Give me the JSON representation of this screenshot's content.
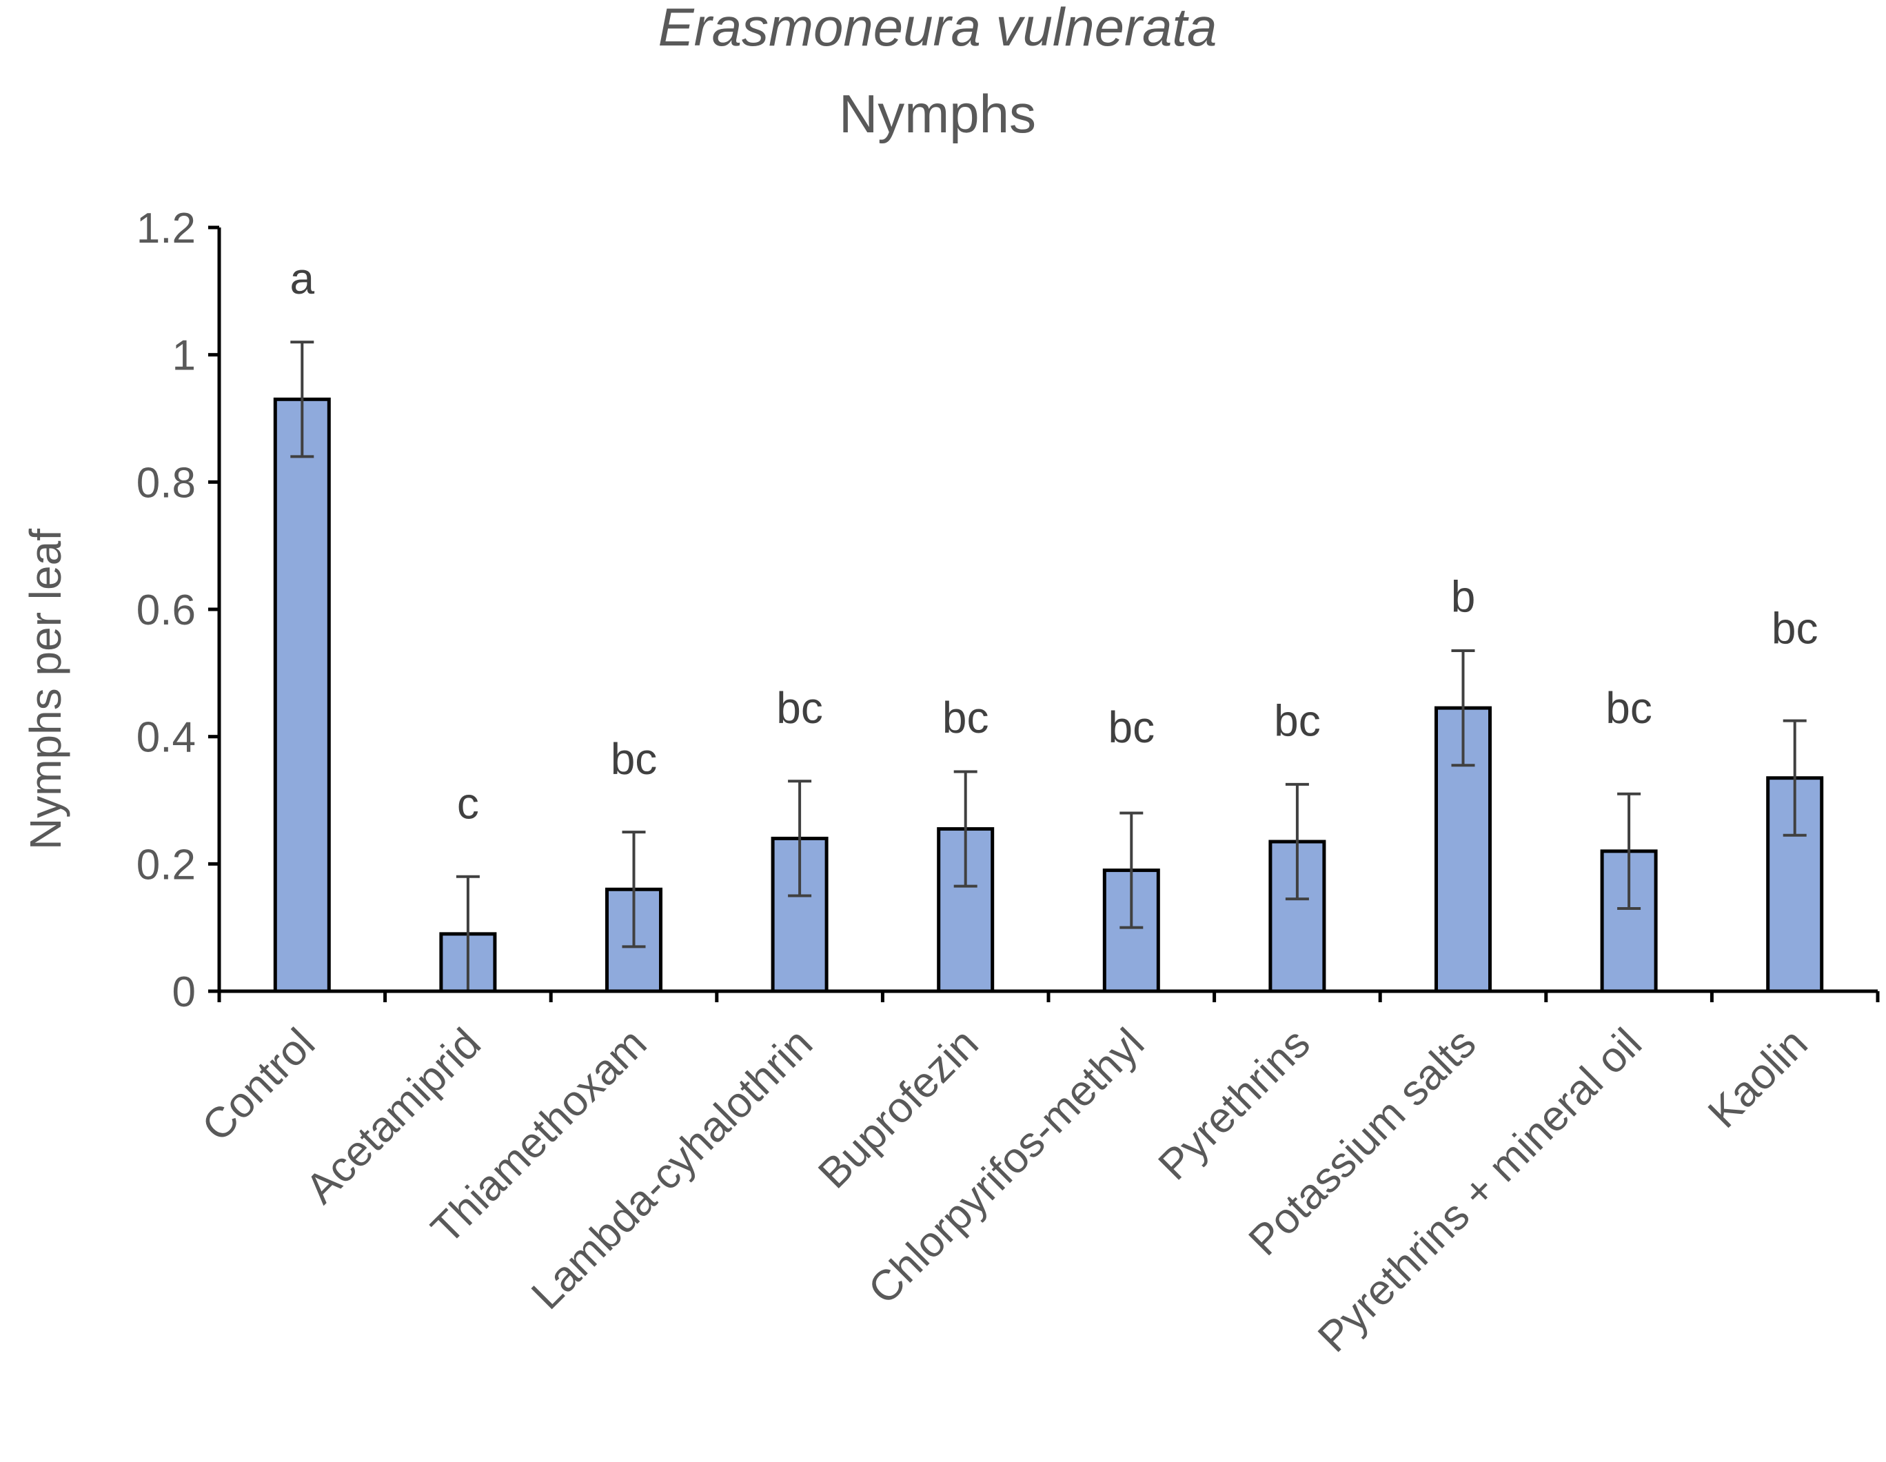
{
  "chart_data": {
    "type": "bar",
    "title": "Erasmoneura vulnerata",
    "subtitle": "Nymphs",
    "xlabel": "",
    "ylabel": "Nymphs per leaf",
    "ylim": [
      0,
      1.2
    ],
    "yticks": [
      0,
      0.2,
      0.4,
      0.6,
      0.8,
      1,
      1.2
    ],
    "ytick_labels": [
      "0",
      "0.2",
      "0.4",
      "0.6",
      "0.8",
      "1",
      "1.2"
    ],
    "grid": false,
    "categories": [
      "Control",
      "Acetamiprid",
      "Thiamethoxam",
      "Lambda-cyhalothrin",
      "Buprofezin",
      "Chlorpyrifos-methyl",
      "Pyrethrins",
      "Potassium salts",
      "Pyrethrins + mineral oil",
      "Kaolin"
    ],
    "values": [
      0.93,
      0.09,
      0.16,
      0.24,
      0.255,
      0.19,
      0.235,
      0.445,
      0.22,
      0.335
    ],
    "error": [
      0.09,
      0.09,
      0.09,
      0.09,
      0.09,
      0.09,
      0.09,
      0.09,
      0.09,
      0.09
    ],
    "significance_letters": [
      "a",
      "c",
      "bc",
      "bc",
      "bc",
      "bc",
      "bc",
      "b",
      "bc",
      "bc"
    ],
    "letter_y": [
      1.12,
      0.295,
      0.365,
      0.445,
      0.43,
      0.415,
      0.425,
      0.62,
      0.445,
      0.57
    ],
    "bar_color": "#8faadc",
    "bar_edge_color": "#000000",
    "error_color": "#404040",
    "axis_color": "#000000"
  }
}
